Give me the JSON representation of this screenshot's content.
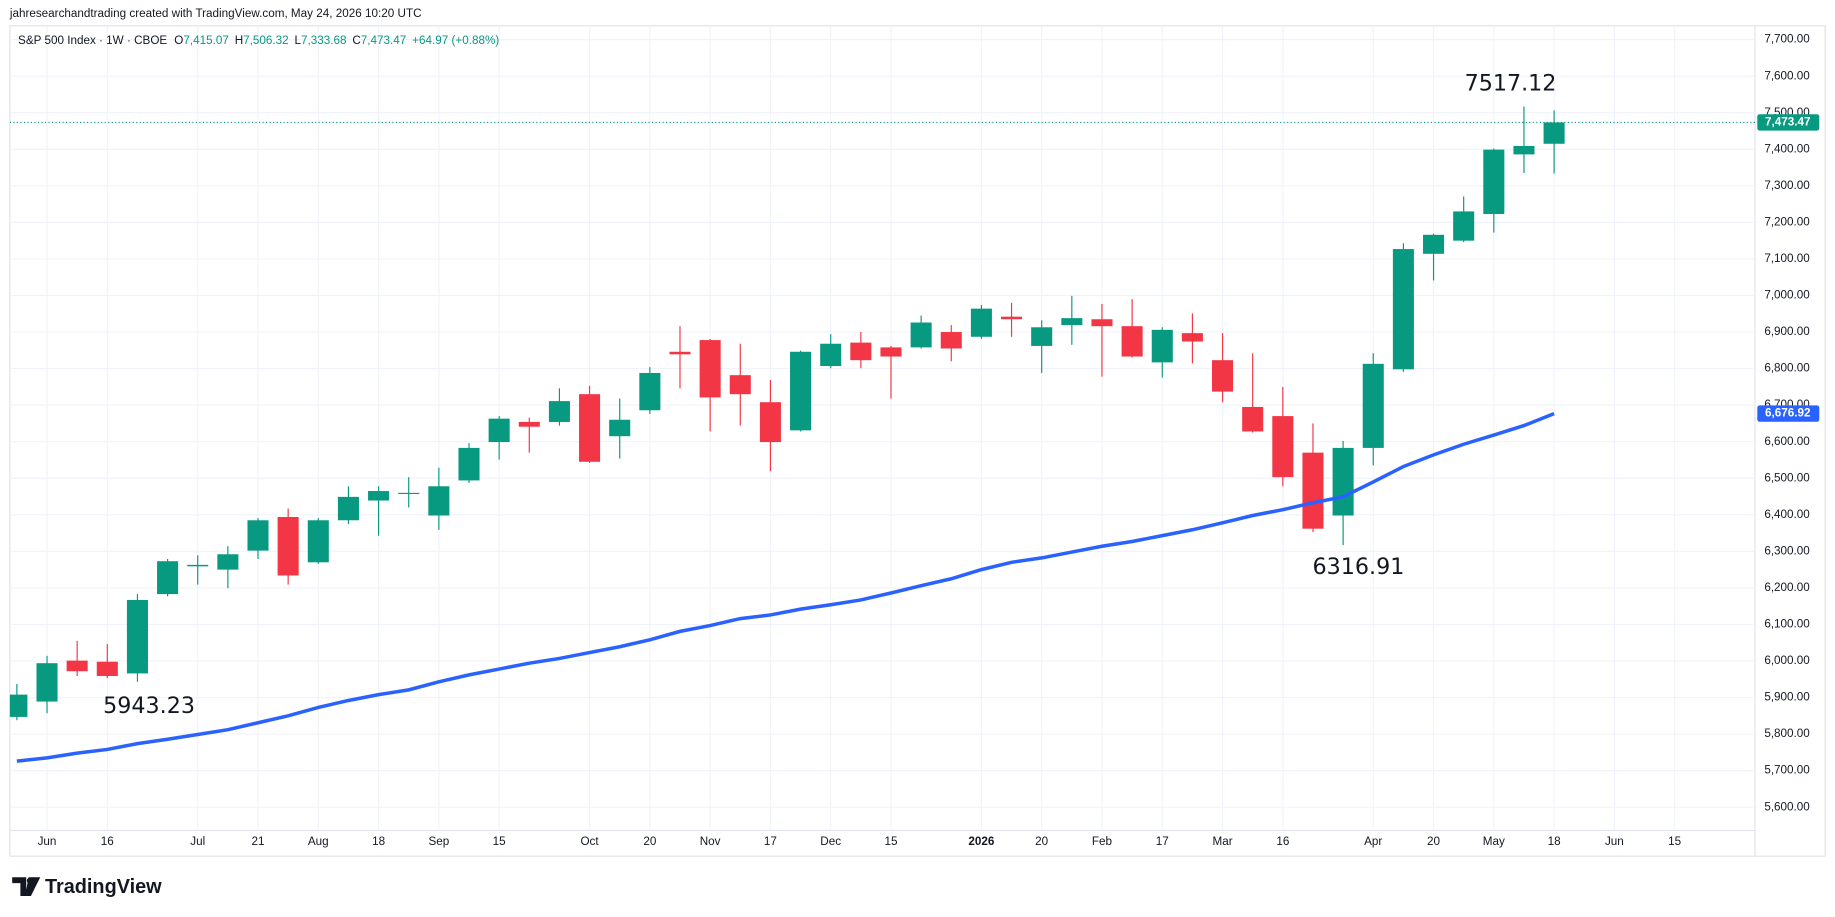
{
  "attribution": "jahresearchandtrading created with TradingView.com, May 24, 2026 10:20 UTC",
  "footer": {
    "brand": "TradingView"
  },
  "chart_data": {
    "type": "candlestick",
    "header": {
      "symbol": "S&P 500 Index · 1W · CBOE",
      "ohlc_letters": [
        "O",
        "H",
        "L",
        "C"
      ],
      "ohlc_values": [
        "7,415.07",
        "7,506.32",
        "7,333.68",
        "7,473.47"
      ],
      "change": "+64.97 (+0.88%)"
    },
    "categories": [
      null,
      "Jun",
      null,
      "16",
      null,
      null,
      "Jul",
      null,
      "21",
      null,
      "Aug",
      null,
      "18",
      null,
      "Sep",
      null,
      "15",
      null,
      null,
      "Oct",
      null,
      "20",
      null,
      "Nov",
      null,
      "17",
      null,
      "Dec",
      null,
      "15",
      null,
      null,
      "2026",
      null,
      "20",
      null,
      "Feb",
      null,
      "17",
      null,
      "Mar",
      null,
      "16",
      null,
      null,
      "Apr",
      null,
      "20",
      null,
      "May",
      null,
      "18",
      null,
      "Jun",
      null,
      "15"
    ],
    "open": [
      5847,
      5889,
      6001,
      5998,
      5966,
      6183,
      6259,
      6250,
      6302,
      6394,
      6270,
      6385,
      6439,
      6457,
      6398,
      6494,
      6599,
      6654,
      6654,
      6730,
      6615,
      6686,
      6846,
      6878,
      6782,
      6708,
      6631,
      6807,
      6871,
      6858,
      6858,
      6900,
      6887,
      6942,
      6862,
      6919,
      6935,
      6916,
      6817,
      6897,
      6823,
      6695,
      6670,
      6570,
      6398,
      6583,
      6798,
      7114,
      7150,
      7223,
      7386,
      7415.07,
      null,
      null,
      null,
      null
    ],
    "high": [
      5937,
      6014,
      6055,
      6046,
      6183,
      6279,
      6289,
      6314,
      6391,
      6417,
      6391,
      6478,
      6478,
      6503,
      6529,
      6596,
      6670,
      6666,
      6746,
      6753,
      6718,
      6804,
      6916,
      6881,
      6868,
      6769,
      6849,
      6894,
      6900,
      6862,
      6945,
      6919,
      6974,
      6980,
      6932,
      6999,
      6977,
      6990,
      6913,
      6951,
      6897,
      6842,
      6750,
      6650,
      6602,
      6842,
      7143,
      7169,
      7271,
      7402,
      7517.12,
      7506.32,
      null,
      null,
      null,
      null
    ],
    "low": [
      5838,
      5857,
      5959,
      5953,
      5943.23,
      6177,
      6209,
      6199,
      6279,
      6209,
      6266,
      6375,
      6343,
      6420,
      6359,
      6487,
      6551,
      6570,
      6644,
      6542,
      6554,
      6676,
      6746,
      6628,
      6644,
      6519,
      6628,
      6801,
      6801,
      6718,
      6855,
      6820,
      6881,
      6887,
      6788,
      6865,
      6778,
      6830,
      6775,
      6814,
      6708,
      6625,
      6478,
      6353,
      6316.91,
      6535,
      6791,
      7041,
      7146,
      7172,
      7335,
      7333.68,
      null,
      null,
      null,
      null
    ],
    "close": [
      5908,
      5994,
      5972,
      5959,
      6167,
      6273,
      6263,
      6292,
      6385,
      6234,
      6385,
      6449,
      6465,
      6460,
      6478,
      6583,
      6663,
      6641,
      6711,
      6545,
      6660,
      6788,
      6839,
      6721,
      6730,
      6599,
      6846,
      6868,
      6823,
      6833,
      6926,
      6855,
      6964,
      6935,
      6913,
      6938,
      6916,
      6833,
      6906,
      6874,
      6737,
      6628,
      6503,
      6362,
      6583,
      6813,
      7127,
      7166,
      7230,
      7399,
      7409,
      7473.47,
      null,
      null,
      null,
      null
    ],
    "up_color": "#089981",
    "down_color": "#f23645",
    "moving_average": {
      "color": "#2962ff",
      "values": [
        5726,
        5735,
        5748,
        5758,
        5774,
        5786,
        5799,
        5812,
        5831,
        5850,
        5873,
        5892,
        5908,
        5921,
        5943,
        5962,
        5978,
        5994,
        6007,
        6023,
        6039,
        6058,
        6081,
        6097,
        6116,
        6126,
        6142,
        6154,
        6167,
        6186,
        6206,
        6225,
        6250,
        6270,
        6282,
        6298,
        6314,
        6327,
        6343,
        6359,
        6378,
        6398,
        6414,
        6433,
        6449,
        6490,
        6532,
        6564,
        6593,
        6618,
        6644,
        6676.92,
        null,
        null,
        null,
        null
      ],
      "last_label": {
        "value": 6676.92,
        "label": "6,676.92"
      }
    },
    "price_label": {
      "value": 7473.47,
      "label": "7,473.47"
    },
    "annotations": [
      "7517.12",
      "6316.91",
      "5943.23"
    ],
    "ylim": [
      5466,
      7738
    ],
    "yticks": [
      {
        "value": 5600,
        "label": "5,600.00"
      },
      {
        "value": 5700,
        "label": "5,700.00"
      },
      {
        "value": 5800,
        "label": "5,800.00"
      },
      {
        "value": 5900,
        "label": "5,900.00"
      },
      {
        "value": 6000,
        "label": "6,000.00"
      },
      {
        "value": 6100,
        "label": "6,100.00"
      },
      {
        "value": 6200,
        "label": "6,200.00"
      },
      {
        "value": 6300,
        "label": "6,300.00"
      },
      {
        "value": 6400,
        "label": "6,400.00"
      },
      {
        "value": 6500,
        "label": "6,500.00"
      },
      {
        "value": 6600,
        "label": "6,600.00"
      },
      {
        "value": 6700,
        "label": "6,700.00"
      },
      {
        "value": 6800,
        "label": "6,800.00"
      },
      {
        "value": 6900,
        "label": "6,900.00"
      },
      {
        "value": 7000,
        "label": "7,000.00"
      },
      {
        "value": 7100,
        "label": "7,100.00"
      },
      {
        "value": 7200,
        "label": "7,200.00"
      },
      {
        "value": 7300,
        "label": "7,300.00"
      },
      {
        "value": 7400,
        "label": "7,400.00"
      },
      {
        "value": 7500,
        "label": "7,500.00"
      },
      {
        "value": 7600,
        "label": "7,600.00"
      },
      {
        "value": 7700,
        "label": "7,700.00"
      }
    ],
    "grid": true
  }
}
